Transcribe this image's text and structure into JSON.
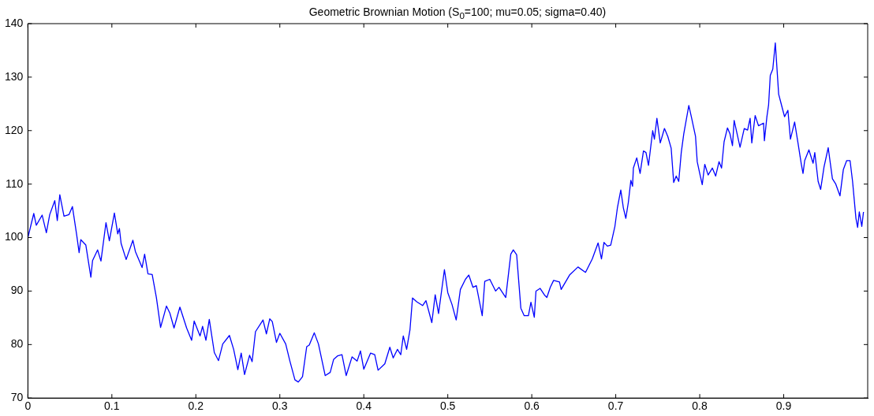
{
  "chart_data": {
    "type": "line",
    "title": "Geometric Brownian Motion (S$_{0}$=100; mu=0.05; sigma=0.40)",
    "xlim": [
      0,
      1
    ],
    "xticks": [
      0,
      0.1,
      0.2,
      0.3,
      0.4,
      0.5,
      0.6,
      0.7,
      0.8,
      0.9
    ],
    "ylim": [
      70,
      140
    ],
    "yticks": [
      70,
      80,
      90,
      100,
      110,
      120,
      130,
      140
    ],
    "grid": false,
    "legend": false,
    "marker": "none",
    "line_style": "solid",
    "series": [
      {
        "color": "#0000ff",
        "x": [
          0,
          0.007,
          0.01,
          0.017,
          0.022,
          0.026,
          0.032,
          0.035,
          0.038,
          0.043,
          0.049,
          0.053,
          0.058,
          0.061,
          0.063,
          0.069,
          0.075,
          0.077,
          0.083,
          0.087,
          0.093,
          0.097,
          0.103,
          0.107,
          0.109,
          0.111,
          0.117,
          0.125,
          0.128,
          0.136,
          0.139,
          0.143,
          0.148,
          0.153,
          0.158,
          0.165,
          0.169,
          0.174,
          0.181,
          0.189,
          0.195,
          0.198,
          0.205,
          0.208,
          0.212,
          0.216,
          0.222,
          0.227,
          0.232,
          0.24,
          0.245,
          0.25,
          0.254,
          0.258,
          0.264,
          0.267,
          0.271,
          0.28,
          0.284,
          0.288,
          0.291,
          0.296,
          0.3,
          0.307,
          0.312,
          0.318,
          0.322,
          0.327,
          0.332,
          0.335,
          0.341,
          0.346,
          0.354,
          0.36,
          0.364,
          0.369,
          0.374,
          0.379,
          0.386,
          0.392,
          0.396,
          0.4,
          0.408,
          0.413,
          0.417,
          0.425,
          0.431,
          0.435,
          0.44,
          0.444,
          0.447,
          0.451,
          0.455,
          0.458,
          0.463,
          0.47,
          0.474,
          0.481,
          0.485,
          0.489,
          0.496,
          0.5,
          0.505,
          0.51,
          0.515,
          0.521,
          0.525,
          0.53,
          0.534,
          0.541,
          0.544,
          0.55,
          0.557,
          0.561,
          0.569,
          0.575,
          0.578,
          0.582,
          0.587,
          0.591,
          0.596,
          0.599,
          0.603,
          0.605,
          0.61,
          0.615,
          0.618,
          0.622,
          0.626,
          0.633,
          0.635,
          0.645,
          0.655,
          0.664,
          0.672,
          0.679,
          0.683,
          0.686,
          0.69,
          0.694,
          0.699,
          0.702,
          0.706,
          0.709,
          0.712,
          0.715,
          0.718,
          0.72,
          0.721,
          0.725,
          0.729,
          0.733,
          0.736,
          0.739,
          0.744,
          0.746,
          0.749,
          0.753,
          0.758,
          0.762,
          0.766,
          0.769,
          0.772,
          0.775,
          0.778,
          0.781,
          0.787,
          0.79,
          0.795,
          0.797,
          0.8,
          0.803,
          0.806,
          0.81,
          0.815,
          0.819,
          0.823,
          0.826,
          0.829,
          0.833,
          0.836,
          0.839,
          0.841,
          0.848,
          0.853,
          0.857,
          0.86,
          0.862,
          0.866,
          0.87,
          0.876,
          0.877,
          0.88,
          0.882,
          0.884,
          0.887,
          0.89,
          0.894,
          0.896,
          0.899,
          0.901,
          0.905,
          0.908,
          0.913,
          0.917,
          0.921,
          0.923,
          0.925,
          0.93,
          0.935,
          0.937,
          0.941,
          0.944,
          0.948,
          0.953,
          0.958,
          0.962,
          0.967,
          0.971,
          0.975,
          0.979,
          0.982,
          0.986,
          0.988,
          0.99,
          0.993,
          0.995
        ],
        "values": [
          100,
          104.5,
          102.3,
          104.2,
          100.9,
          104.3,
          106.9,
          103.2,
          108.0,
          104.0,
          104.3,
          105.8,
          100.6,
          97.2,
          99.6,
          98.6,
          92.6,
          95.7,
          97.7,
          95.6,
          102.8,
          99.4,
          104.6,
          100.7,
          101.7,
          98.9,
          95.9,
          99.5,
          97.4,
          94.4,
          96.9,
          93.2,
          93.1,
          88.8,
          83.2,
          87.2,
          85.9,
          83.1,
          87.0,
          83.1,
          80.8,
          84.4,
          81.6,
          83.4,
          80.8,
          84.7,
          78.5,
          77.0,
          80.1,
          81.7,
          79.1,
          75.3,
          78.4,
          74.4,
          78.0,
          76.8,
          82.4,
          84.6,
          82.0,
          84.8,
          84.3,
          80.4,
          82.1,
          80.1,
          76.9,
          73.4,
          73.0,
          74.0,
          79.6,
          79.9,
          82.2,
          80.1,
          74.2,
          74.8,
          77.2,
          77.9,
          78.1,
          74.2,
          77.7,
          76.9,
          78.8,
          75.4,
          78.4,
          78.1,
          75.2,
          76.4,
          79.5,
          77.5,
          79.1,
          78.1,
          81.6,
          79.1,
          82.8,
          88.7,
          88.0,
          87.3,
          88.2,
          84.1,
          89.3,
          85.8,
          94.0,
          89.7,
          87.5,
          84.6,
          90.3,
          92.2,
          93.0,
          90.7,
          91.0,
          85.4,
          91.8,
          92.2,
          90.0,
          90.7,
          88.8,
          96.9,
          97.7,
          96.8,
          86.8,
          85.4,
          85.4,
          87.9,
          85.1,
          90.0,
          90.5,
          89.3,
          88.8,
          90.7,
          92.0,
          91.7,
          90.3,
          93.0,
          94.5,
          93.5,
          96.0,
          99.0,
          96.0,
          99.1,
          98.4,
          98.6,
          102.1,
          105.6,
          108.9,
          105.6,
          103.6,
          106.6,
          110.7,
          109.6,
          113.0,
          114.9,
          112.0,
          116.2,
          115.9,
          113.5,
          120.0,
          118.4,
          122.3,
          117.7,
          120.4,
          118.9,
          116.7,
          110.3,
          111.5,
          110.5,
          115.9,
          119.4,
          124.7,
          122.6,
          118.9,
          114.2,
          112.0,
          109.9,
          113.7,
          111.7,
          113.0,
          111.5,
          114.2,
          113.0,
          117.9,
          120.5,
          119.4,
          117.2,
          121.9,
          116.9,
          120.4,
          120.1,
          122.3,
          117.7,
          122.8,
          120.9,
          121.4,
          118.1,
          122.6,
          124.8,
          130.3,
          131.5,
          136.4,
          126.8,
          125.6,
          123.8,
          122.6,
          123.8,
          118.4,
          121.6,
          117.7,
          113.7,
          112.0,
          114.4,
          116.4,
          113.9,
          115.9,
          110.5,
          109.0,
          113.2,
          116.8,
          111.0,
          110.0,
          107.8,
          112.7,
          114.4,
          114.4,
          110.5,
          103.6,
          101.9,
          104.8,
          102.1,
          104.8
        ]
      }
    ]
  }
}
